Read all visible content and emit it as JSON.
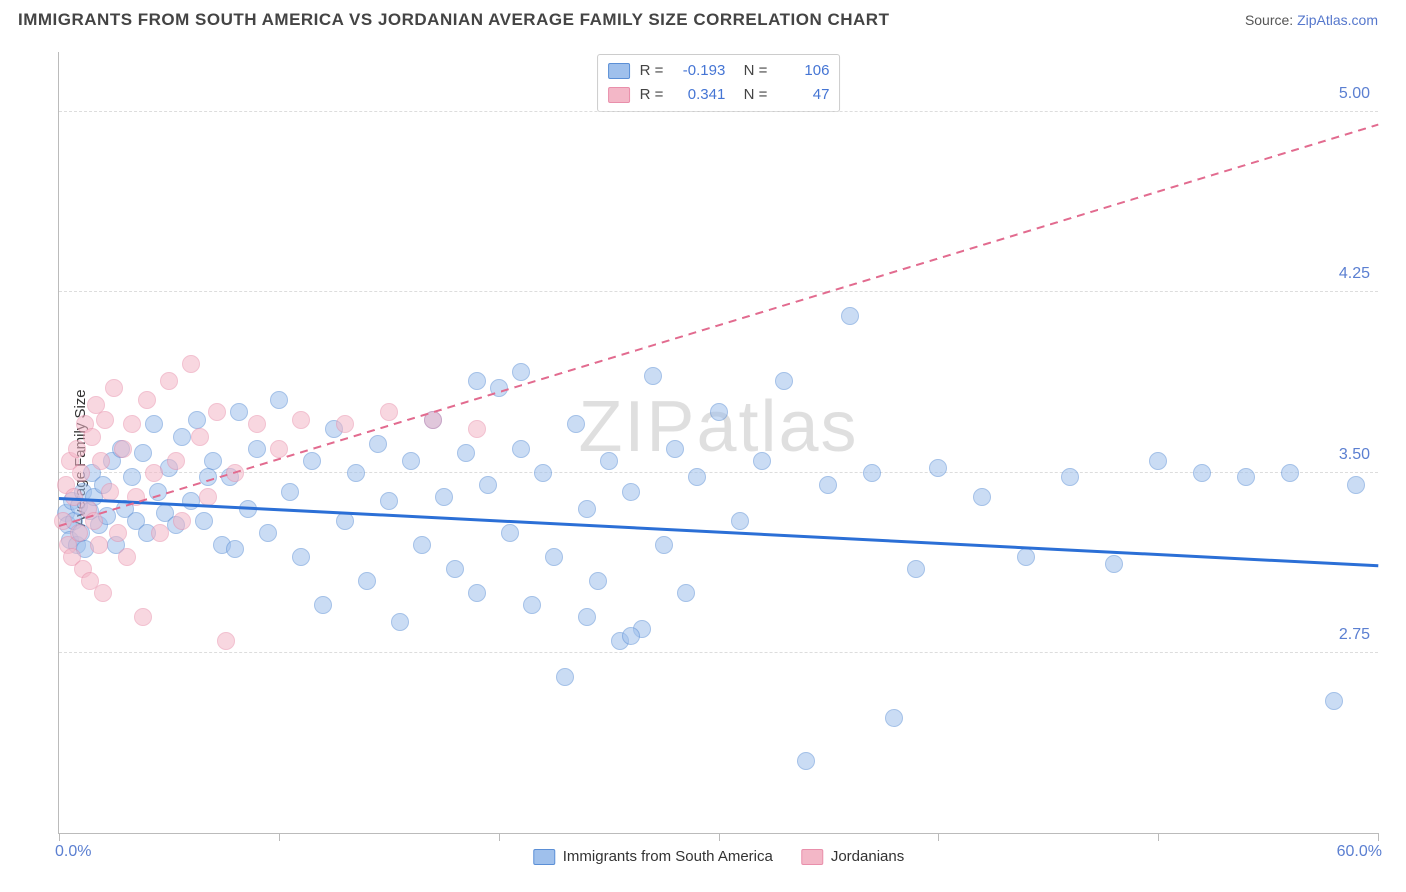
{
  "title": "IMMIGRANTS FROM SOUTH AMERICA VS JORDANIAN AVERAGE FAMILY SIZE CORRELATION CHART",
  "source_label": "Source:",
  "source_link": "ZipAtlas.com",
  "watermark": "ZIPatlas",
  "chart": {
    "type": "scatter",
    "ylabel": "Average Family Size",
    "xlim": [
      0,
      60
    ],
    "ylim": [
      2.0,
      5.25
    ],
    "x_tick_step": 10,
    "y_ticks": [
      2.75,
      3.5,
      4.25,
      5.0
    ],
    "x_min_label": "0.0%",
    "x_max_label": "60.0%",
    "background_color": "#ffffff",
    "grid_color": "#dddddd",
    "axis_color": "#bbbbbb",
    "tick_label_color": "#5b7fd1",
    "marker_radius": 9,
    "marker_opacity": 0.55,
    "series": [
      {
        "name": "Immigrants from South America",
        "fill": "#9fc0ec",
        "stroke": "#5b8fd6",
        "R": "-0.193",
        "N": "106",
        "trend": {
          "color": "#2b6fd6",
          "width": 3,
          "dash": "solid",
          "y_at_xmin": 3.4,
          "y_at_xmax": 3.12
        },
        "points": [
          [
            0.3,
            3.33
          ],
          [
            0.4,
            3.28
          ],
          [
            0.5,
            3.22
          ],
          [
            0.6,
            3.38
          ],
          [
            0.7,
            3.3
          ],
          [
            0.8,
            3.2
          ],
          [
            0.9,
            3.36
          ],
          [
            1.0,
            3.25
          ],
          [
            1.1,
            3.42
          ],
          [
            1.2,
            3.18
          ],
          [
            1.4,
            3.34
          ],
          [
            1.5,
            3.5
          ],
          [
            1.6,
            3.4
          ],
          [
            1.8,
            3.28
          ],
          [
            2.0,
            3.45
          ],
          [
            2.2,
            3.32
          ],
          [
            2.4,
            3.55
          ],
          [
            2.6,
            3.2
          ],
          [
            2.8,
            3.6
          ],
          [
            3.0,
            3.35
          ],
          [
            3.3,
            3.48
          ],
          [
            3.5,
            3.3
          ],
          [
            3.8,
            3.58
          ],
          [
            4.0,
            3.25
          ],
          [
            4.3,
            3.7
          ],
          [
            4.5,
            3.42
          ],
          [
            4.8,
            3.33
          ],
          [
            5.0,
            3.52
          ],
          [
            5.3,
            3.28
          ],
          [
            5.6,
            3.65
          ],
          [
            6.0,
            3.38
          ],
          [
            6.3,
            3.72
          ],
          [
            6.6,
            3.3
          ],
          [
            7.0,
            3.55
          ],
          [
            7.4,
            3.2
          ],
          [
            7.8,
            3.48
          ],
          [
            8.2,
            3.75
          ],
          [
            8.6,
            3.35
          ],
          [
            9.0,
            3.6
          ],
          [
            9.5,
            3.25
          ],
          [
            10.0,
            3.8
          ],
          [
            10.5,
            3.42
          ],
          [
            11.0,
            3.15
          ],
          [
            11.5,
            3.55
          ],
          [
            12.0,
            2.95
          ],
          [
            12.5,
            3.68
          ],
          [
            13.0,
            3.3
          ],
          [
            13.5,
            3.5
          ],
          [
            14.0,
            3.05
          ],
          [
            14.5,
            3.62
          ],
          [
            15.0,
            3.38
          ],
          [
            15.5,
            2.88
          ],
          [
            16.0,
            3.55
          ],
          [
            16.5,
            3.2
          ],
          [
            17.0,
            3.72
          ],
          [
            17.5,
            3.4
          ],
          [
            18.0,
            3.1
          ],
          [
            18.5,
            3.58
          ],
          [
            19.0,
            3.0
          ],
          [
            19.5,
            3.45
          ],
          [
            20.0,
            3.85
          ],
          [
            20.5,
            3.25
          ],
          [
            21.0,
            3.6
          ],
          [
            21.5,
            2.95
          ],
          [
            22.0,
            3.5
          ],
          [
            22.5,
            3.15
          ],
          [
            23.0,
            2.65
          ],
          [
            23.5,
            3.7
          ],
          [
            24.0,
            3.35
          ],
          [
            24.5,
            3.05
          ],
          [
            25.0,
            3.55
          ],
          [
            25.5,
            2.8
          ],
          [
            26.0,
            3.42
          ],
          [
            26.5,
            2.85
          ],
          [
            27.0,
            3.9
          ],
          [
            27.5,
            3.2
          ],
          [
            28.0,
            3.6
          ],
          [
            28.5,
            3.0
          ],
          [
            29.0,
            3.48
          ],
          [
            30.0,
            3.75
          ],
          [
            31.0,
            3.3
          ],
          [
            32.0,
            3.55
          ],
          [
            33.0,
            3.88
          ],
          [
            34.0,
            2.3
          ],
          [
            35.0,
            3.45
          ],
          [
            36.0,
            4.15
          ],
          [
            37.0,
            3.5
          ],
          [
            38.0,
            2.48
          ],
          [
            39.0,
            3.1
          ],
          [
            40.0,
            3.52
          ],
          [
            42.0,
            3.4
          ],
          [
            44.0,
            3.15
          ],
          [
            46.0,
            3.48
          ],
          [
            48.0,
            3.12
          ],
          [
            50.0,
            3.55
          ],
          [
            52.0,
            3.5
          ],
          [
            54.0,
            3.48
          ],
          [
            56.0,
            3.5
          ],
          [
            58.0,
            2.55
          ],
          [
            59.0,
            3.45
          ],
          [
            24.0,
            2.9
          ],
          [
            26.0,
            2.82
          ],
          [
            19.0,
            3.88
          ],
          [
            21.0,
            3.92
          ],
          [
            6.8,
            3.48
          ],
          [
            8.0,
            3.18
          ]
        ]
      },
      {
        "name": "Jordanians",
        "fill": "#f3b7c7",
        "stroke": "#e98fab",
        "R": "0.341",
        "N": "47",
        "trend": {
          "color": "#e26b8f",
          "width": 2,
          "dash": "dashed",
          "y_at_xmin": 3.28,
          "y_at_xmax": 4.95
        },
        "points": [
          [
            0.2,
            3.3
          ],
          [
            0.3,
            3.45
          ],
          [
            0.4,
            3.2
          ],
          [
            0.5,
            3.55
          ],
          [
            0.6,
            3.15
          ],
          [
            0.7,
            3.4
          ],
          [
            0.8,
            3.6
          ],
          [
            0.9,
            3.25
          ],
          [
            1.0,
            3.5
          ],
          [
            1.1,
            3.1
          ],
          [
            1.2,
            3.7
          ],
          [
            1.3,
            3.35
          ],
          [
            1.4,
            3.05
          ],
          [
            1.5,
            3.65
          ],
          [
            1.6,
            3.3
          ],
          [
            1.7,
            3.78
          ],
          [
            1.8,
            3.2
          ],
          [
            1.9,
            3.55
          ],
          [
            2.0,
            3.0
          ],
          [
            2.1,
            3.72
          ],
          [
            2.3,
            3.42
          ],
          [
            2.5,
            3.85
          ],
          [
            2.7,
            3.25
          ],
          [
            2.9,
            3.6
          ],
          [
            3.1,
            3.15
          ],
          [
            3.3,
            3.7
          ],
          [
            3.5,
            3.4
          ],
          [
            3.8,
            2.9
          ],
          [
            4.0,
            3.8
          ],
          [
            4.3,
            3.5
          ],
          [
            4.6,
            3.25
          ],
          [
            5.0,
            3.88
          ],
          [
            5.3,
            3.55
          ],
          [
            5.6,
            3.3
          ],
          [
            6.0,
            3.95
          ],
          [
            6.4,
            3.65
          ],
          [
            6.8,
            3.4
          ],
          [
            7.2,
            3.75
          ],
          [
            7.6,
            2.8
          ],
          [
            8.0,
            3.5
          ],
          [
            9.0,
            3.7
          ],
          [
            10.0,
            3.6
          ],
          [
            11.0,
            3.72
          ],
          [
            13.0,
            3.7
          ],
          [
            15.0,
            3.75
          ],
          [
            17.0,
            3.72
          ],
          [
            19.0,
            3.68
          ]
        ]
      }
    ]
  },
  "legend_bottom": [
    {
      "label": "Immigrants from South America",
      "fill": "#9fc0ec",
      "stroke": "#5b8fd6"
    },
    {
      "label": "Jordanians",
      "fill": "#f3b7c7",
      "stroke": "#e98fab"
    }
  ]
}
